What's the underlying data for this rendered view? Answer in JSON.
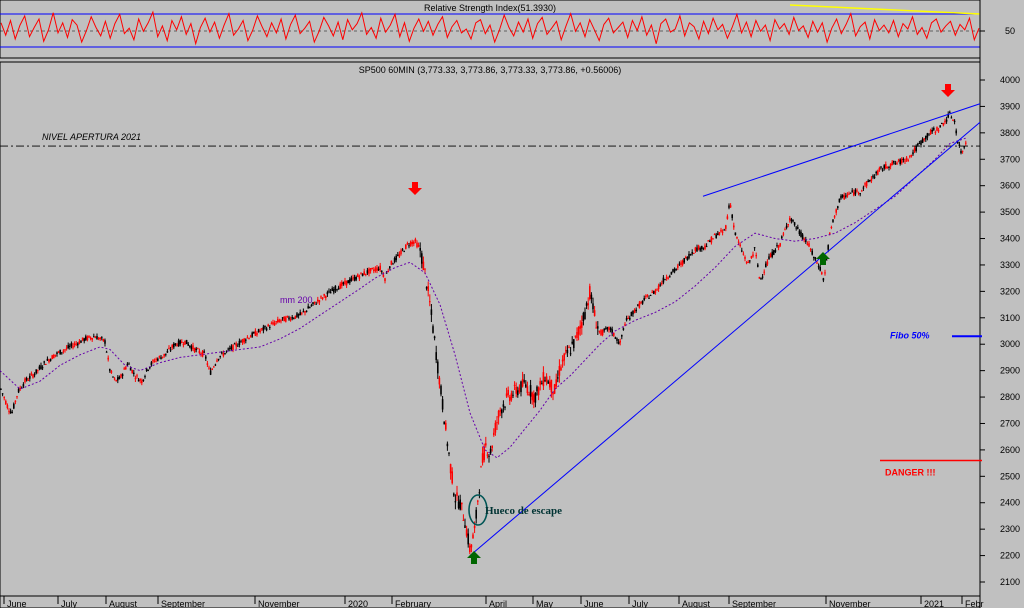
{
  "rsi": {
    "title": "Relative Strength Index(51.3930)",
    "tick_label": "50",
    "levels": [
      70,
      30
    ],
    "range": [
      15,
      85
    ],
    "values": [
      58,
      42,
      61,
      37,
      55,
      67,
      40,
      52,
      63,
      34,
      49,
      71,
      45,
      58,
      39,
      62,
      55,
      33,
      48,
      66,
      52,
      41,
      60,
      38,
      57,
      69,
      44,
      51,
      36,
      63,
      47,
      58,
      72,
      40,
      54,
      35,
      61,
      49,
      66,
      43,
      57,
      31,
      52,
      64,
      46,
      59,
      38,
      55,
      70,
      42,
      50,
      61,
      35,
      48,
      67,
      53,
      40,
      58,
      45,
      63,
      37,
      56,
      68,
      44,
      51,
      60,
      33,
      47,
      65,
      54,
      41,
      59,
      36,
      62,
      49,
      57,
      71,
      43,
      52,
      38,
      64,
      46,
      55,
      69,
      40,
      58,
      34,
      51,
      63,
      47,
      60,
      42,
      56,
      66,
      39,
      53,
      61,
      45,
      50,
      37,
      58,
      62,
      44,
      55,
      33,
      49,
      68,
      52,
      41,
      59,
      46,
      63,
      38,
      57,
      65,
      43,
      51,
      60,
      36,
      54,
      70,
      47,
      58,
      40,
      62,
      49,
      35,
      56,
      64,
      45,
      52,
      59,
      39,
      61,
      48,
      66,
      42,
      55,
      31,
      57,
      63,
      46,
      50,
      67,
      41,
      58,
      53,
      37,
      60,
      44,
      64,
      49,
      56,
      38,
      52,
      69,
      45,
      59,
      40,
      61,
      47,
      55,
      35,
      62,
      50,
      57,
      43,
      65,
      48,
      54,
      39,
      60,
      46,
      58,
      33,
      51,
      63,
      44,
      56,
      70,
      41,
      53,
      59,
      37,
      62,
      48,
      55,
      45,
      61,
      40,
      57,
      50,
      66,
      43,
      52,
      38,
      58,
      63,
      46,
      54,
      60,
      42,
      56,
      49,
      64,
      36,
      51
    ],
    "trendline_label": ""
  },
  "main": {
    "title": "SP500 60MIN (3,773.33, 3,773.86, 3,773.33, 3,773.86, +0.56006)",
    "chart_data": {
      "type": "candlestick",
      "title": "SP500 60MIN (3,773.33, 3,773.86, 3,773.33, 3,773.86, +0.56006)",
      "ylim": [
        2080,
        4040
      ],
      "y_ticks": [
        4000,
        3900,
        3800,
        3700,
        3600,
        3500,
        3400,
        3300,
        3200,
        3100,
        3000,
        2900,
        2800,
        2700,
        2600,
        2500,
        2400,
        2300,
        2200,
        2100
      ],
      "x_labels": [
        "June",
        "July",
        "August",
        "September",
        "November",
        "2020",
        "February",
        "April",
        "May",
        "June",
        "July",
        "August",
        "September",
        "November",
        "2021",
        "Febr"
      ],
      "price_path": [
        [
          0,
          2840
        ],
        [
          8,
          2760
        ],
        [
          12,
          2740
        ],
        [
          18,
          2820
        ],
        [
          25,
          2860
        ],
        [
          35,
          2890
        ],
        [
          45,
          2930
        ],
        [
          55,
          2960
        ],
        [
          65,
          2980
        ],
        [
          75,
          3000
        ],
        [
          85,
          3020
        ],
        [
          95,
          3030
        ],
        [
          105,
          3010
        ],
        [
          110,
          2900
        ],
        [
          115,
          2860
        ],
        [
          120,
          2870
        ],
        [
          128,
          2930
        ],
        [
          135,
          2880
        ],
        [
          142,
          2860
        ],
        [
          148,
          2910
        ],
        [
          155,
          2940
        ],
        [
          165,
          2960
        ],
        [
          175,
          3000
        ],
        [
          185,
          3010
        ],
        [
          195,
          2980
        ],
        [
          205,
          2960
        ],
        [
          210,
          2890
        ],
        [
          218,
          2950
        ],
        [
          230,
          2980
        ],
        [
          245,
          3020
        ],
        [
          260,
          3050
        ],
        [
          280,
          3090
        ],
        [
          300,
          3110
        ],
        [
          320,
          3170
        ],
        [
          335,
          3210
        ],
        [
          350,
          3240
        ],
        [
          365,
          3270
        ],
        [
          380,
          3290
        ],
        [
          385,
          3250
        ],
        [
          390,
          3300
        ],
        [
          400,
          3340
        ],
        [
          408,
          3380
        ],
        [
          415,
          3390
        ],
        [
          420,
          3360
        ],
        [
          425,
          3270
        ],
        [
          430,
          3150
        ],
        [
          435,
          3000
        ],
        [
          440,
          2850
        ],
        [
          445,
          2700
        ],
        [
          450,
          2550
        ],
        [
          455,
          2420
        ],
        [
          460,
          2400
        ],
        [
          465,
          2330
        ],
        [
          470,
          2220
        ],
        [
          475,
          2300
        ],
        [
          478,
          2420
        ],
        [
          482,
          2550
        ],
        [
          486,
          2620
        ],
        [
          490,
          2580
        ],
        [
          495,
          2680
        ],
        [
          500,
          2750
        ],
        [
          508,
          2800
        ],
        [
          515,
          2820
        ],
        [
          525,
          2850
        ],
        [
          535,
          2800
        ],
        [
          545,
          2880
        ],
        [
          555,
          2820
        ],
        [
          560,
          2910
        ],
        [
          565,
          2950
        ],
        [
          575,
          3010
        ],
        [
          585,
          3120
        ],
        [
          590,
          3200
        ],
        [
          595,
          3100
        ],
        [
          600,
          3040
        ],
        [
          610,
          3060
        ],
        [
          620,
          3000
        ],
        [
          625,
          3080
        ],
        [
          635,
          3130
        ],
        [
          645,
          3170
        ],
        [
          655,
          3200
        ],
        [
          665,
          3250
        ],
        [
          675,
          3280
        ],
        [
          685,
          3320
        ],
        [
          695,
          3360
        ],
        [
          705,
          3370
        ],
        [
          715,
          3410
        ],
        [
          725,
          3430
        ],
        [
          730,
          3540
        ],
        [
          735,
          3420
        ],
        [
          740,
          3370
        ],
        [
          748,
          3300
        ],
        [
          755,
          3360
        ],
        [
          760,
          3240
        ],
        [
          765,
          3290
        ],
        [
          770,
          3330
        ],
        [
          780,
          3380
        ],
        [
          790,
          3480
        ],
        [
          795,
          3450
        ],
        [
          800,
          3420
        ],
        [
          808,
          3380
        ],
        [
          815,
          3320
        ],
        [
          820,
          3290
        ],
        [
          824,
          3240
        ],
        [
          830,
          3420
        ],
        [
          835,
          3490
        ],
        [
          840,
          3550
        ],
        [
          850,
          3570
        ],
        [
          860,
          3580
        ],
        [
          870,
          3620
        ],
        [
          880,
          3660
        ],
        [
          890,
          3680
        ],
        [
          900,
          3690
        ],
        [
          910,
          3710
        ],
        [
          920,
          3760
        ],
        [
          930,
          3800
        ],
        [
          940,
          3820
        ],
        [
          950,
          3870
        ],
        [
          955,
          3840
        ],
        [
          958,
          3760
        ],
        [
          962,
          3720
        ],
        [
          966,
          3770
        ]
      ],
      "moving_average_label": "mm 200",
      "moving_average": [
        [
          0,
          2900
        ],
        [
          20,
          2830
        ],
        [
          40,
          2860
        ],
        [
          60,
          2920
        ],
        [
          80,
          2960
        ],
        [
          100,
          2990
        ],
        [
          110,
          2980
        ],
        [
          125,
          2920
        ],
        [
          140,
          2900
        ],
        [
          160,
          2930
        ],
        [
          180,
          2950
        ],
        [
          200,
          2960
        ],
        [
          220,
          2970
        ],
        [
          240,
          2980
        ],
        [
          260,
          2990
        ],
        [
          280,
          3020
        ],
        [
          300,
          3060
        ],
        [
          320,
          3110
        ],
        [
          340,
          3160
        ],
        [
          360,
          3210
        ],
        [
          375,
          3250
        ],
        [
          395,
          3290
        ],
        [
          410,
          3310
        ],
        [
          425,
          3270
        ],
        [
          440,
          3150
        ],
        [
          455,
          2960
        ],
        [
          470,
          2740
        ],
        [
          485,
          2600
        ],
        [
          497,
          2570
        ],
        [
          510,
          2610
        ],
        [
          525,
          2680
        ],
        [
          540,
          2750
        ],
        [
          555,
          2830
        ],
        [
          570,
          2880
        ],
        [
          585,
          2940
        ],
        [
          600,
          3000
        ],
        [
          615,
          3050
        ],
        [
          635,
          3090
        ],
        [
          655,
          3120
        ],
        [
          675,
          3160
        ],
        [
          695,
          3220
        ],
        [
          715,
          3290
        ],
        [
          735,
          3370
        ],
        [
          755,
          3420
        ],
        [
          775,
          3400
        ],
        [
          795,
          3390
        ],
        [
          815,
          3400
        ],
        [
          835,
          3420
        ],
        [
          855,
          3460
        ],
        [
          875,
          3510
        ],
        [
          895,
          3560
        ],
        [
          915,
          3630
        ],
        [
          935,
          3700
        ],
        [
          950,
          3760
        ],
        [
          966,
          3780
        ]
      ]
    },
    "annotations": {
      "nivel_apertura": "NIVEL APERTURA 2021",
      "nivel_apertura_value": 3750,
      "fibo": "Fibo 50%",
      "fibo_value": 3030,
      "danger": "DANGER !!!",
      "danger_value": 2560,
      "hueco": "Hueco de escape"
    },
    "colors": {
      "background": "#c0c0c0",
      "candle_up": "#000000",
      "candle_down": "#ff0000",
      "trend": "#0000ff",
      "ma": "#6600aa",
      "rsi_line": "#ff0000",
      "rsi_trend": "#ffff00",
      "danger": "#ff0000",
      "fibo": "#0000ff",
      "arrow_down": "#ff0000",
      "arrow_up": "#006600"
    }
  }
}
